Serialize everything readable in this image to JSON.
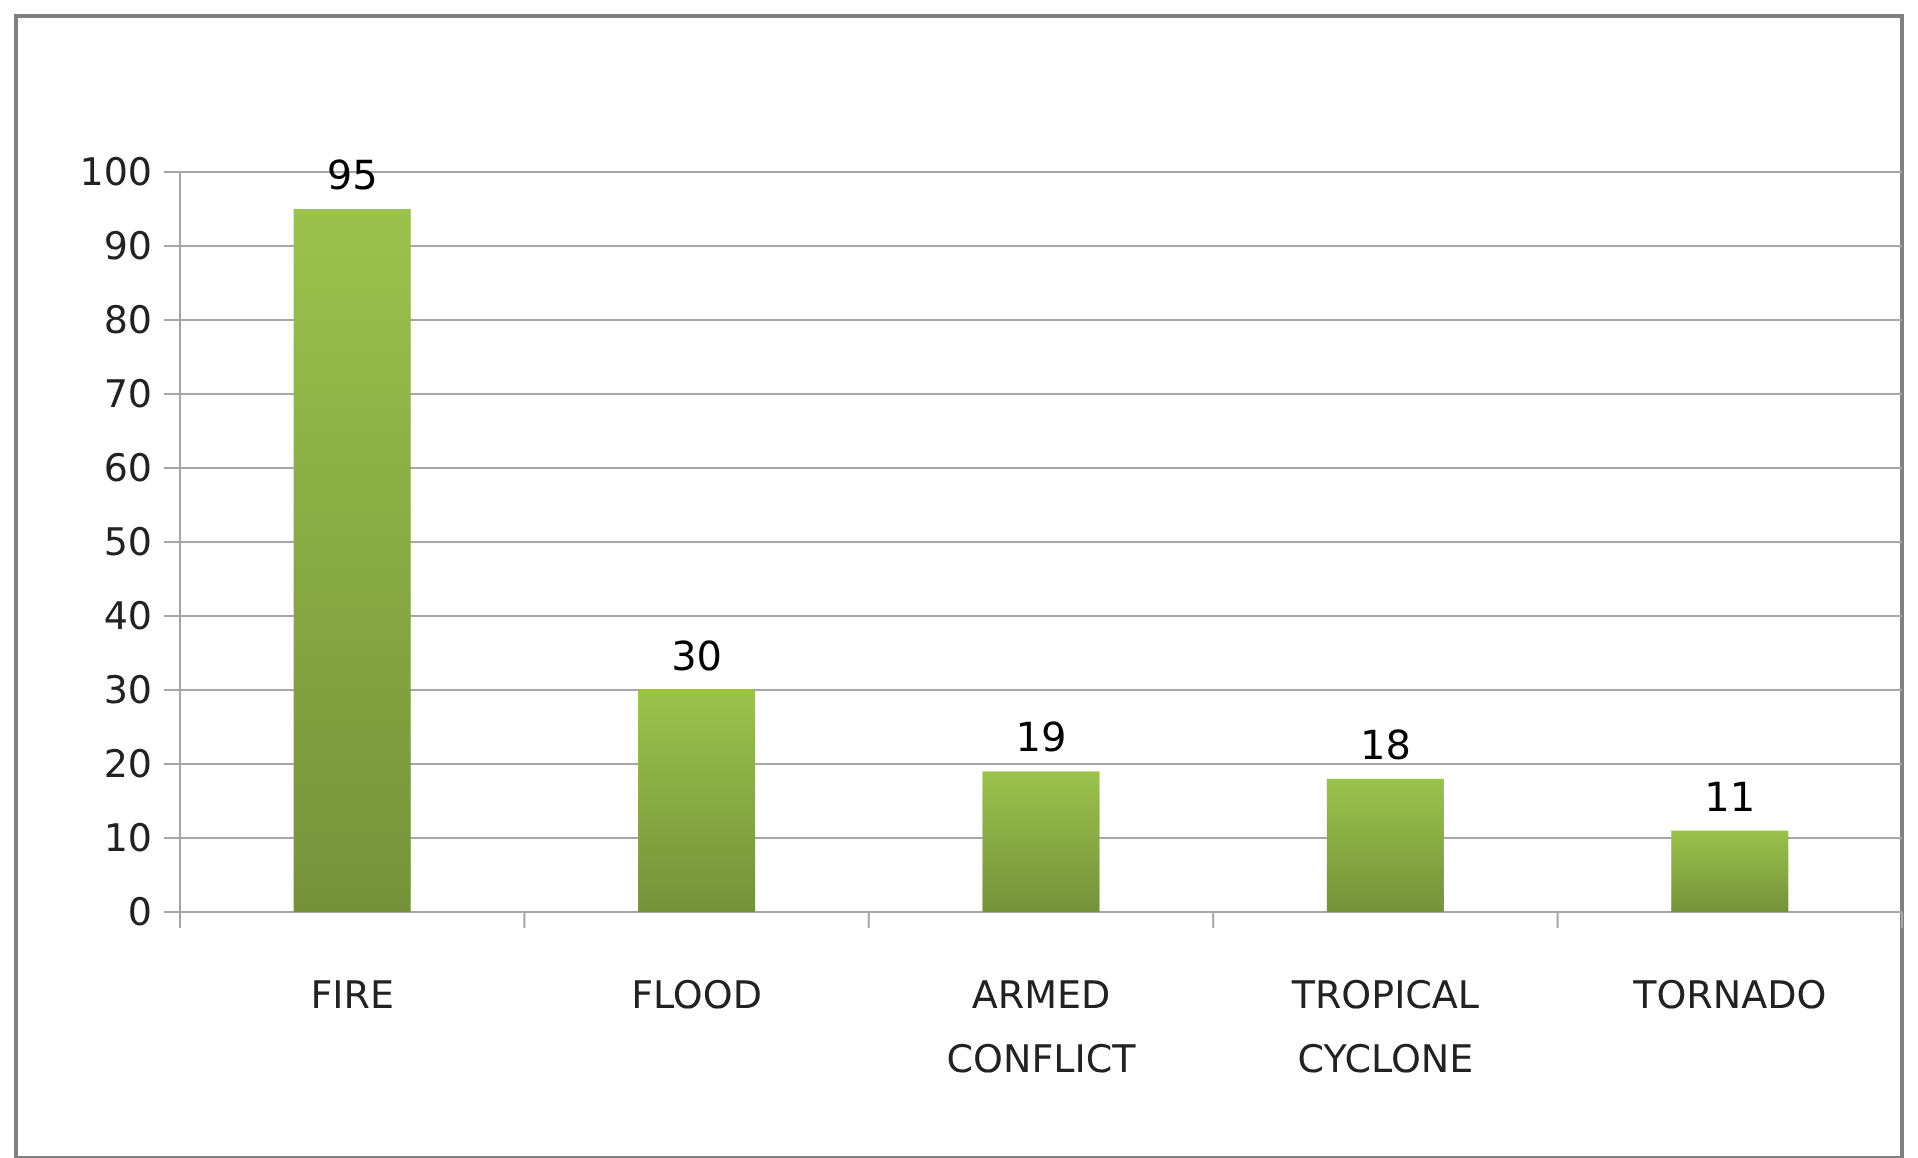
{
  "chart_data": {
    "type": "bar",
    "categories": [
      "FIRE",
      "FLOOD",
      "ARMED CONFLICT",
      "TROPICAL CYCLONE",
      "TORNADO"
    ],
    "values": [
      95,
      30,
      19,
      18,
      11
    ],
    "color": "#89ab44",
    "ylim": [
      0,
      100
    ],
    "yticks": [
      0,
      10,
      20,
      30,
      40,
      50,
      60,
      70,
      80,
      90,
      100
    ],
    "grid": "y",
    "data_labels": true
  }
}
